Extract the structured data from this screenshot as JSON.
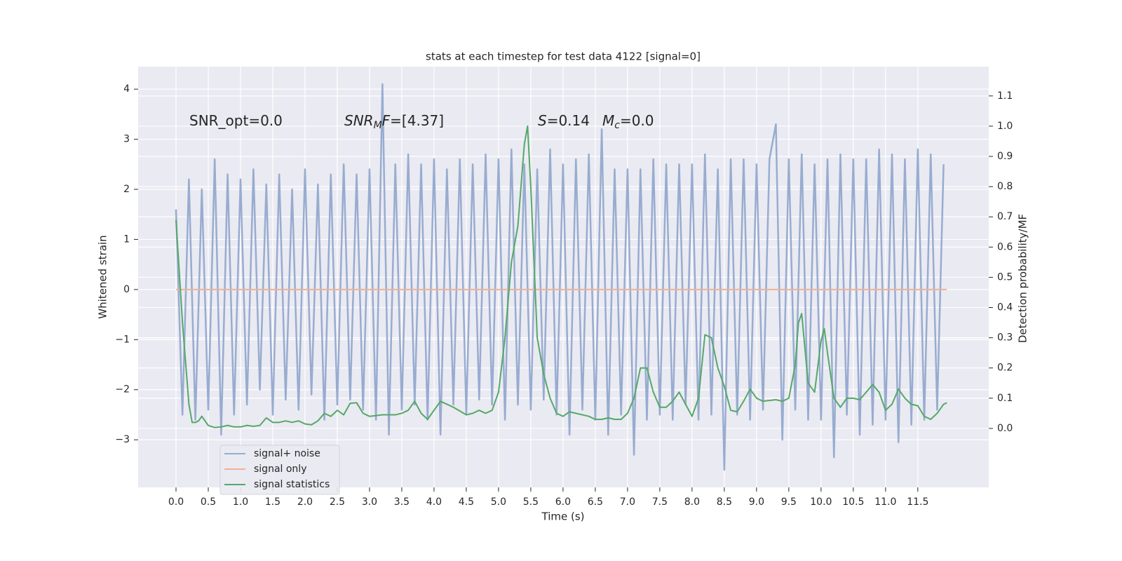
{
  "chart_data": {
    "type": "line",
    "title": "stats at each timestep for test data 4122 [signal=0]",
    "xlabel": "Time (s)",
    "ylabel": "Whitened strain",
    "y2label": "Detection probability/MF",
    "annotations": [
      {
        "parts": [
          {
            "text": "SNR_opt=0.0"
          }
        ]
      },
      {
        "parts": [
          {
            "text": "SNR",
            "style": "italic"
          },
          {
            "text": "M",
            "style": "italic-sub"
          },
          {
            "text": "F",
            "style": "italic"
          },
          {
            "text": "=[4.37]"
          }
        ]
      },
      {
        "parts": [
          {
            "text": "S",
            "style": "italic"
          },
          {
            "text": "=0.14"
          }
        ]
      },
      {
        "parts": [
          {
            "text": "M",
            "style": "italic"
          },
          {
            "text": "c",
            "style": "italic-sub"
          },
          {
            "text": "=0.0"
          }
        ]
      }
    ],
    "xlim": [
      -0.587,
      12.6
    ],
    "ylim": [
      -3.95,
      4.45
    ],
    "y2lim": [
      -0.195,
      1.197
    ],
    "xticks": [
      {
        "value": 0,
        "label": "0.0"
      },
      {
        "value": 0.5,
        "label": "0.5"
      },
      {
        "value": 1,
        "label": "1.0"
      },
      {
        "value": 1.5,
        "label": "1.5"
      },
      {
        "value": 2,
        "label": "2.0"
      },
      {
        "value": 2.5,
        "label": "2.5"
      },
      {
        "value": 3,
        "label": "3.0"
      },
      {
        "value": 3.5,
        "label": "3.5"
      },
      {
        "value": 4,
        "label": "4.0"
      },
      {
        "value": 4.5,
        "label": "4.5"
      },
      {
        "value": 5,
        "label": "5.0"
      },
      {
        "value": 5.5,
        "label": "5.5"
      },
      {
        "value": 6,
        "label": "6.0"
      },
      {
        "value": 6.5,
        "label": "6.5"
      },
      {
        "value": 7,
        "label": "7.0"
      },
      {
        "value": 7.5,
        "label": "7.5"
      },
      {
        "value": 8,
        "label": "8.0"
      },
      {
        "value": 8.5,
        "label": "8.5"
      },
      {
        "value": 9,
        "label": "9.0"
      },
      {
        "value": 9.5,
        "label": "9.5"
      },
      {
        "value": 10,
        "label": "10.0"
      },
      {
        "value": 10.5,
        "label": "10.5"
      },
      {
        "value": 11,
        "label": "11.0"
      },
      {
        "value": 11.5,
        "label": "11.5"
      }
    ],
    "yticks": [
      {
        "value": -3,
        "label": "−3"
      },
      {
        "value": -2,
        "label": "−2"
      },
      {
        "value": -1,
        "label": "−1"
      },
      0,
      1,
      2,
      3,
      4
    ],
    "y2ticks": [
      {
        "value": 0,
        "label": "0.0"
      },
      {
        "value": 0.1,
        "label": "0.1"
      },
      {
        "value": 0.2,
        "label": "0.2"
      },
      {
        "value": 0.3,
        "label": "0.3"
      },
      {
        "value": 0.4,
        "label": "0.4"
      },
      {
        "value": 0.5,
        "label": "0.5"
      },
      {
        "value": 0.6,
        "label": "0.6"
      },
      {
        "value": 0.7,
        "label": "0.7"
      },
      {
        "value": 0.8,
        "label": "0.8"
      },
      {
        "value": 0.9,
        "label": "0.9"
      },
      {
        "value": 1,
        "label": "1.0"
      },
      {
        "value": 1.1,
        "label": "1.1"
      }
    ],
    "grid": true,
    "legend": "lower left",
    "series": [
      {
        "name": "signal+ noise",
        "color": "#98acd0",
        "x": [
          0,
          0.1,
          0.2,
          0.3,
          0.4,
          0.5,
          0.6,
          0.7,
          0.8,
          0.9,
          1,
          1.1,
          1.2,
          1.3,
          1.4,
          1.5,
          1.6,
          1.7,
          1.8,
          1.9,
          2,
          2.1,
          2.2,
          2.3,
          2.4,
          2.5,
          2.6,
          2.7,
          2.8,
          2.9,
          3,
          3.1,
          3.2,
          3.3,
          3.4,
          3.5,
          3.6,
          3.7,
          3.8,
          3.9,
          4,
          4.1,
          4.2,
          4.3,
          4.4,
          4.5,
          4.6,
          4.7,
          4.8,
          4.9,
          5,
          5.1,
          5.2,
          5.3,
          5.4,
          5.5,
          5.6,
          5.7,
          5.8,
          5.9,
          6,
          6.1,
          6.2,
          6.3,
          6.4,
          6.5,
          6.6,
          6.7,
          6.8,
          6.9,
          7,
          7.1,
          7.2,
          7.3,
          7.4,
          7.5,
          7.6,
          7.7,
          7.8,
          7.9,
          8,
          8.1,
          8.2,
          8.3,
          8.4,
          8.5,
          8.6,
          8.7,
          8.8,
          8.9,
          9,
          9.1,
          9.2,
          9.3,
          9.4,
          9.5,
          9.6,
          9.7,
          9.8,
          9.9,
          10,
          10.1,
          10.2,
          10.3,
          10.4,
          10.5,
          10.6,
          10.7,
          10.8,
          10.9,
          11,
          11.1,
          11.2,
          11.3,
          11.4,
          11.5,
          11.6,
          11.7,
          11.8,
          11.9
        ],
        "values": [
          1.6,
          -2.5,
          2.2,
          -2.6,
          2.0,
          -2.4,
          2.6,
          -2.9,
          2.3,
          -2.5,
          2.2,
          -2.3,
          2.4,
          -2.0,
          2.1,
          -2.5,
          2.3,
          -2.2,
          2.0,
          -2.4,
          2.4,
          -2.1,
          2.1,
          -2.6,
          2.3,
          -2.3,
          2.5,
          -2.2,
          2.3,
          -2.4,
          2.4,
          -2.6,
          4.1,
          -2.9,
          2.5,
          -2.4,
          2.7,
          -2.3,
          2.5,
          -2.6,
          2.6,
          -2.9,
          2.4,
          -2.3,
          2.6,
          -2.5,
          2.5,
          -2.2,
          2.7,
          -2.3,
          2.6,
          -2.6,
          2.8,
          -2.3,
          2.5,
          -2.4,
          2.4,
          -2.2,
          2.8,
          -2.5,
          2.5,
          -2.9,
          2.6,
          -2.4,
          2.7,
          -2.6,
          3.2,
          -2.9,
          2.4,
          -2.5,
          2.4,
          -3.3,
          2.4,
          -2.6,
          2.6,
          -2.5,
          2.5,
          -2.6,
          2.5,
          -2.3,
          2.5,
          -2.6,
          2.7,
          -2.5,
          2.4,
          -3.6,
          2.6,
          -2.5,
          2.6,
          -2.6,
          2.5,
          -2.4,
          2.6,
          3.3,
          -3.0,
          2.6,
          -2.4,
          2.7,
          -2.6,
          2.5,
          -2.6,
          2.6,
          -3.35,
          2.7,
          -2.5,
          2.6,
          -2.9,
          2.6,
          -2.7,
          2.8,
          -2.6,
          2.7,
          -3.05,
          2.6,
          -2.7,
          2.8,
          -2.6,
          2.7,
          -2.4,
          2.5
        ]
      },
      {
        "name": "signal only",
        "color": "#eeb298",
        "x": [
          0,
          11.95
        ],
        "values": [
          0,
          0
        ]
      },
      {
        "name": "signal statistics",
        "color": "#55a868",
        "axis": "y2",
        "x": [
          0,
          0.1,
          0.2,
          0.25,
          0.3,
          0.35,
          0.4,
          0.5,
          0.6,
          0.7,
          0.8,
          0.9,
          1,
          1.1,
          1.2,
          1.3,
          1.4,
          1.5,
          1.6,
          1.7,
          1.8,
          1.9,
          2,
          2.1,
          2.2,
          2.3,
          2.4,
          2.5,
          2.6,
          2.7,
          2.8,
          2.9,
          3,
          3.2,
          3.4,
          3.5,
          3.6,
          3.7,
          3.8,
          3.9,
          4,
          4.1,
          4.3,
          4.5,
          4.6,
          4.7,
          4.8,
          4.9,
          5,
          5.1,
          5.2,
          5.3,
          5.4,
          5.45,
          5.5,
          5.6,
          5.7,
          5.8,
          5.9,
          6,
          6.1,
          6.2,
          6.4,
          6.5,
          6.6,
          6.7,
          6.8,
          6.9,
          7,
          7.1,
          7.2,
          7.3,
          7.4,
          7.5,
          7.6,
          7.7,
          7.8,
          7.9,
          8,
          8.1,
          8.2,
          8.3,
          8.4,
          8.5,
          8.6,
          8.7,
          8.8,
          8.9,
          9,
          9.1,
          9.3,
          9.4,
          9.5,
          9.6,
          9.65,
          9.7,
          9.8,
          9.9,
          10,
          10.05,
          10.1,
          10.2,
          10.3,
          10.4,
          10.5,
          10.6,
          10.7,
          10.8,
          10.9,
          11,
          11.1,
          11.2,
          11.3,
          11.4,
          11.5,
          11.6,
          11.7,
          11.8,
          11.9,
          11.95
        ],
        "values": [
          0.69,
          0.35,
          0.08,
          0.02,
          0.02,
          0.025,
          0.04,
          0.01,
          0.003,
          0.005,
          0.01,
          0.005,
          0.005,
          0.01,
          0.007,
          0.01,
          0.035,
          0.02,
          0.02,
          0.025,
          0.02,
          0.025,
          0.015,
          0.012,
          0.025,
          0.05,
          0.04,
          0.06,
          0.045,
          0.083,
          0.085,
          0.05,
          0.04,
          0.045,
          0.045,
          0.05,
          0.06,
          0.09,
          0.05,
          0.03,
          0.06,
          0.09,
          0.07,
          0.045,
          0.05,
          0.06,
          0.05,
          0.06,
          0.12,
          0.3,
          0.55,
          0.67,
          0.94,
          1.0,
          0.8,
          0.3,
          0.18,
          0.1,
          0.05,
          0.04,
          0.055,
          0.05,
          0.04,
          0.03,
          0.03,
          0.035,
          0.03,
          0.03,
          0.05,
          0.1,
          0.2,
          0.2,
          0.12,
          0.07,
          0.07,
          0.09,
          0.12,
          0.08,
          0.04,
          0.1,
          0.31,
          0.3,
          0.2,
          0.14,
          0.06,
          0.055,
          0.09,
          0.13,
          0.1,
          0.09,
          0.095,
          0.09,
          0.1,
          0.21,
          0.35,
          0.38,
          0.15,
          0.12,
          0.29,
          0.33,
          0.25,
          0.1,
          0.07,
          0.1,
          0.1,
          0.095,
          0.12,
          0.145,
          0.12,
          0.06,
          0.08,
          0.13,
          0.1,
          0.08,
          0.075,
          0.04,
          0.03,
          0.05,
          0.08,
          0.085
        ]
      }
    ]
  }
}
